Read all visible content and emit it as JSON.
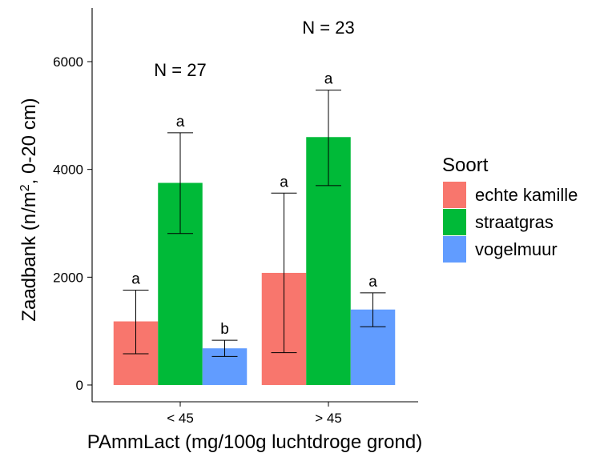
{
  "chart_data": {
    "type": "bar",
    "categories": [
      "< 45",
      "> 45"
    ],
    "series": [
      {
        "name": "echte kamille",
        "color": "#F8766D",
        "values": [
          1180,
          2080
        ],
        "error_low": [
          580,
          600
        ],
        "error_high": [
          1760,
          3560
        ],
        "labels": [
          "a",
          "a"
        ]
      },
      {
        "name": "straatgras",
        "color": "#00BA38",
        "values": [
          3750,
          4600
        ],
        "error_low": [
          2810,
          3700
        ],
        "error_high": [
          4680,
          5470
        ],
        "labels": [
          "a",
          "a"
        ]
      },
      {
        "name": "vogelmuur",
        "color": "#619CFF",
        "values": [
          680,
          1400
        ],
        "error_low": [
          530,
          1080
        ],
        "error_high": [
          830,
          1710
        ],
        "labels": [
          "b",
          "a"
        ]
      }
    ],
    "annotations": [
      "N = 27",
      "N = 23"
    ],
    "xlabel": "PAmmLact (mg/100g luchtdroge grond)",
    "ylabel": "Zaadbank (n/m², 0-20 cm)",
    "yticks": [
      0,
      2000,
      4000,
      6000
    ],
    "ylim": [
      -300,
      6950
    ],
    "legend_title": "Soort",
    "legend_position": "right",
    "grid": false
  }
}
